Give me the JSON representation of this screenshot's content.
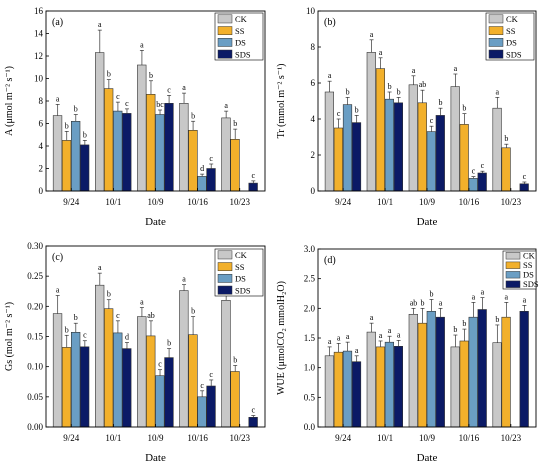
{
  "legend_labels": [
    "CK",
    "SS",
    "DS",
    "SDS"
  ],
  "series_colors": {
    "CK": "#c8c8c8",
    "SS": "#f2b02b",
    "DS": "#6a9ec4",
    "SDS": "#0b1a66"
  },
  "chart_data": [
    {
      "type": "bar",
      "panel_label": "(a)",
      "xlabel": "Date",
      "ylabel": "A (μmol m⁻² s⁻¹)",
      "ylim": [
        0,
        16
      ],
      "yticks": [
        "0",
        "2",
        "4",
        "6",
        "8",
        "10",
        "12",
        "14",
        "16"
      ],
      "legend_position": "top-right",
      "categories": [
        "9/24",
        "10/1",
        "10/9",
        "10/16",
        "10/23"
      ],
      "series": [
        {
          "name": "CK",
          "values": [
            6.7,
            12.3,
            11.2,
            7.8,
            6.5
          ],
          "errors": [
            1.0,
            2.0,
            1.3,
            0.9,
            0.6
          ],
          "letters": [
            "a",
            "a",
            "a",
            "a",
            "a"
          ]
        },
        {
          "name": "SS",
          "values": [
            4.5,
            9.1,
            8.6,
            5.4,
            4.6
          ],
          "errors": [
            0.8,
            0.8,
            1.2,
            0.8,
            0.9
          ],
          "letters": [
            "b",
            "b",
            "b",
            "b",
            "b"
          ]
        },
        {
          "name": "DS",
          "values": [
            6.2,
            7.1,
            6.8,
            1.3,
            null
          ],
          "errors": [
            0.6,
            0.8,
            0.4,
            0.2,
            null
          ],
          "letters": [
            "b",
            "c",
            "bc",
            "d",
            ""
          ]
        },
        {
          "name": "SDS",
          "values": [
            4.1,
            6.9,
            7.8,
            2.0,
            0.7
          ],
          "errors": [
            0.4,
            0.4,
            0.7,
            0.4,
            0.2
          ],
          "letters": [
            "b",
            "c",
            "c",
            "c",
            "c"
          ]
        }
      ]
    },
    {
      "type": "bar",
      "panel_label": "(b)",
      "xlabel": "Date",
      "ylabel": "Tr (mmol m⁻² s⁻¹)",
      "ylim": [
        0,
        10
      ],
      "yticks": [
        "0",
        "2",
        "4",
        "6",
        "8",
        "10"
      ],
      "legend_position": "top-right",
      "categories": [
        "9/24",
        "10/1",
        "10/9",
        "10/16",
        "10/23"
      ],
      "series": [
        {
          "name": "CK",
          "values": [
            5.5,
            7.7,
            5.9,
            5.8,
            4.6
          ],
          "errors": [
            0.6,
            0.7,
            0.5,
            0.7,
            0.6
          ],
          "letters": [
            "a",
            "a",
            "a",
            "a",
            "a"
          ]
        },
        {
          "name": "SS",
          "values": [
            3.5,
            6.8,
            4.9,
            3.7,
            2.4
          ],
          "errors": [
            0.5,
            0.6,
            0.7,
            0.6,
            0.2
          ],
          "letters": [
            "c",
            "a",
            "ab",
            "b",
            "b"
          ]
        },
        {
          "name": "DS",
          "values": [
            4.8,
            5.1,
            3.3,
            0.7,
            null
          ],
          "errors": [
            0.4,
            0.4,
            0.3,
            0.1,
            null
          ],
          "letters": [
            "b",
            "b",
            "c",
            "c",
            ""
          ]
        },
        {
          "name": "SDS",
          "values": [
            3.8,
            4.9,
            4.2,
            1.0,
            0.4
          ],
          "errors": [
            0.4,
            0.3,
            0.4,
            0.1,
            0.1
          ],
          "letters": [
            "b",
            "b",
            "b",
            "c",
            "c"
          ]
        }
      ]
    },
    {
      "type": "bar",
      "panel_label": "(c)",
      "xlabel": "Date",
      "ylabel": "Gs (mol m⁻² s⁻¹)",
      "ylim": [
        0,
        0.3
      ],
      "yticks": [
        "0.00",
        "0.05",
        "0.10",
        "0.15",
        "0.20",
        "0.25",
        "0.30"
      ],
      "legend_position": "top-right",
      "categories": [
        "9/24",
        "10/1",
        "10/9",
        "10/16",
        "10/23"
      ],
      "series": [
        {
          "name": "CK",
          "values": [
            0.188,
            0.235,
            0.183,
            0.226,
            0.21
          ],
          "errors": [
            0.03,
            0.02,
            0.015,
            0.01,
            0.02
          ],
          "letters": [
            "a",
            "a",
            "a",
            "a",
            "a"
          ]
        },
        {
          "name": "SS",
          "values": [
            0.132,
            0.196,
            0.151,
            0.153,
            0.092
          ],
          "errors": [
            0.02,
            0.015,
            0.025,
            0.03,
            0.01
          ],
          "letters": [
            "b",
            "b",
            "ab",
            "b",
            "b"
          ]
        },
        {
          "name": "DS",
          "values": [
            0.157,
            0.156,
            0.085,
            0.05,
            null
          ],
          "errors": [
            0.015,
            0.02,
            0.01,
            0.01,
            null
          ],
          "letters": [
            "b",
            "c",
            "c",
            "c",
            ""
          ]
        },
        {
          "name": "SDS",
          "values": [
            0.133,
            0.13,
            0.115,
            0.068,
            0.016
          ],
          "errors": [
            0.01,
            0.01,
            0.015,
            0.01,
            0.003
          ],
          "letters": [
            "c",
            "d",
            "b",
            "c",
            "c"
          ]
        }
      ]
    },
    {
      "type": "bar",
      "panel_label": "(d)",
      "xlabel": "Date",
      "ylabel": "WUE (μmolCO₂ mmolH₂O)",
      "ylim": [
        0,
        3.0
      ],
      "yticks": [
        "0.0",
        "0.5",
        "1.0",
        "1.5",
        "2.0",
        "2.5",
        "3.0"
      ],
      "legend_position": "top-right",
      "categories": [
        "9/24",
        "10/1",
        "10/9",
        "10/16",
        "10/23"
      ],
      "series": [
        {
          "name": "CK",
          "values": [
            1.2,
            1.6,
            1.9,
            1.35,
            1.42
          ],
          "errors": [
            0.15,
            0.15,
            0.1,
            0.2,
            0.3
          ],
          "letters": [
            "a",
            "a",
            "ab",
            "b",
            "b"
          ]
        },
        {
          "name": "SS",
          "values": [
            1.26,
            1.35,
            1.75,
            1.45,
            1.85
          ],
          "errors": [
            0.15,
            0.1,
            0.25,
            0.2,
            0.25
          ],
          "letters": [
            "a",
            "a",
            "b",
            "b",
            "a"
          ]
        },
        {
          "name": "DS",
          "values": [
            1.28,
            1.43,
            1.95,
            1.85,
            null
          ],
          "errors": [
            0.15,
            0.1,
            0.2,
            0.25,
            null
          ],
          "letters": [
            "a",
            "a",
            "b",
            "a",
            ""
          ]
        },
        {
          "name": "SDS",
          "values": [
            1.1,
            1.36,
            1.85,
            1.98,
            1.95
          ],
          "errors": [
            0.1,
            0.1,
            0.15,
            0.2,
            0.1
          ],
          "letters": [
            "a",
            "a",
            "a",
            "a",
            "a"
          ]
        }
      ]
    }
  ]
}
